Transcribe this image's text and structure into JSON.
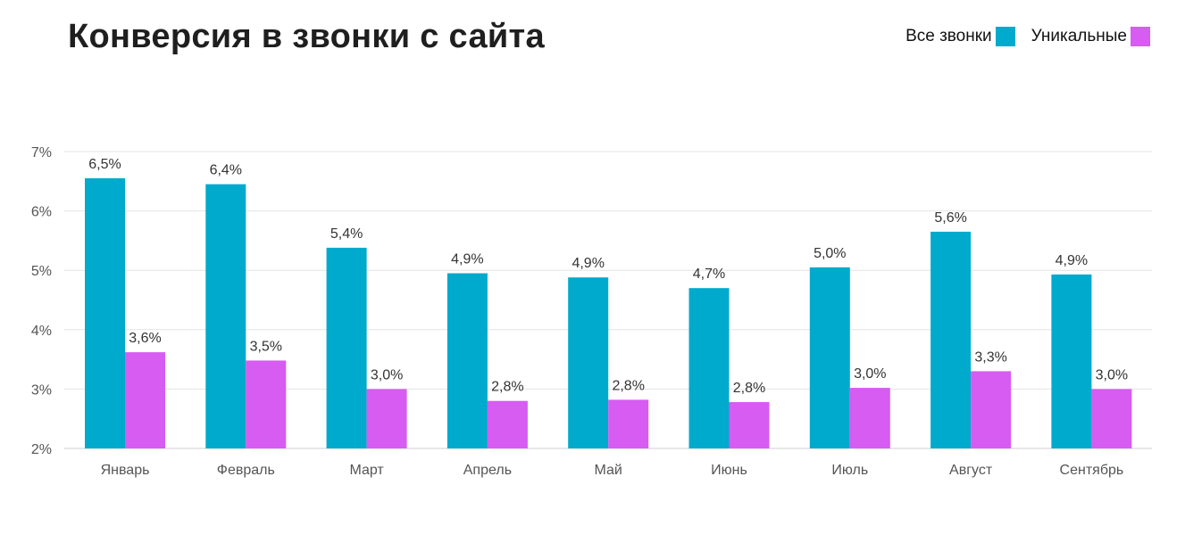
{
  "title": "Конверсия в звонки с сайта",
  "legend": [
    {
      "label": "Все звонки",
      "color": "#00aacc"
    },
    {
      "label": "Уникальные",
      "color": "#d65cf2"
    }
  ],
  "chart_data": {
    "type": "bar",
    "title": "Конверсия в звонки с сайта",
    "xlabel": "",
    "ylabel": "",
    "ylim": [
      2,
      7
    ],
    "y_ticks": [
      2,
      3,
      4,
      5,
      6,
      7
    ],
    "y_tick_labels": [
      "2%",
      "3%",
      "4%",
      "5%",
      "6%",
      "7%"
    ],
    "grid": true,
    "legend_position": "top-right",
    "categories": [
      "Январь",
      "Февраль",
      "Март",
      "Апрель",
      "Май",
      "Июнь",
      "Июль",
      "Август",
      "Сентябрь"
    ],
    "series": [
      {
        "name": "Все звонки",
        "color": "#00aacc",
        "values": [
          6.55,
          6.45,
          5.38,
          4.95,
          4.88,
          4.7,
          5.05,
          5.65,
          4.93
        ],
        "labels": [
          "6,5%",
          "6,4%",
          "5,4%",
          "4,9%",
          "4,9%",
          "4,7%",
          "5,0%",
          "5,6%",
          "4,9%"
        ]
      },
      {
        "name": "Уникальные",
        "color": "#d65cf2",
        "values": [
          3.62,
          3.48,
          3.0,
          2.8,
          2.82,
          2.78,
          3.02,
          3.3,
          3.0
        ],
        "labels": [
          "3,6%",
          "3,5%",
          "3,0%",
          "2,8%",
          "2,8%",
          "2,8%",
          "3,0%",
          "3,3%",
          "3,0%"
        ]
      }
    ]
  }
}
